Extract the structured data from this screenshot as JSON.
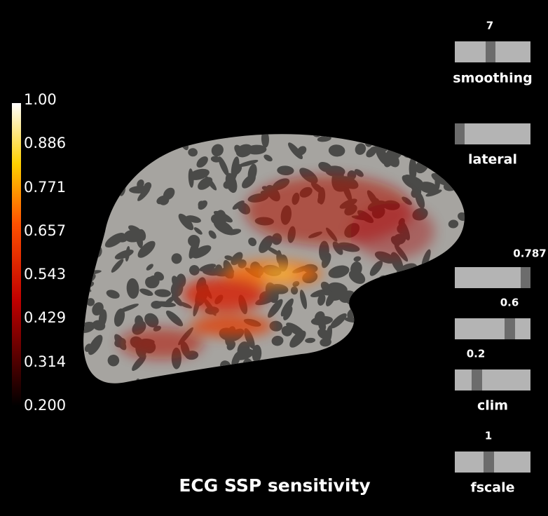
{
  "title": "ECG SSP sensitivity",
  "colorbar": {
    "ticks": [
      {
        "value": 1,
        "label": "1.00"
      },
      0.886,
      0.771,
      0.657,
      0.543,
      0.429,
      0.314,
      {
        "value": 0.2,
        "label": "0.200"
      }
    ]
  },
  "sliders": [
    {
      "value": 7,
      "label": "smoothing"
    },
    {
      "label": "lateral"
    },
    {
      "value": 0.787
    },
    {
      "value": 0.6
    },
    {
      "value": 0.2,
      "label": "clim"
    },
    {
      "value": 1,
      "label": "fscale"
    }
  ]
}
